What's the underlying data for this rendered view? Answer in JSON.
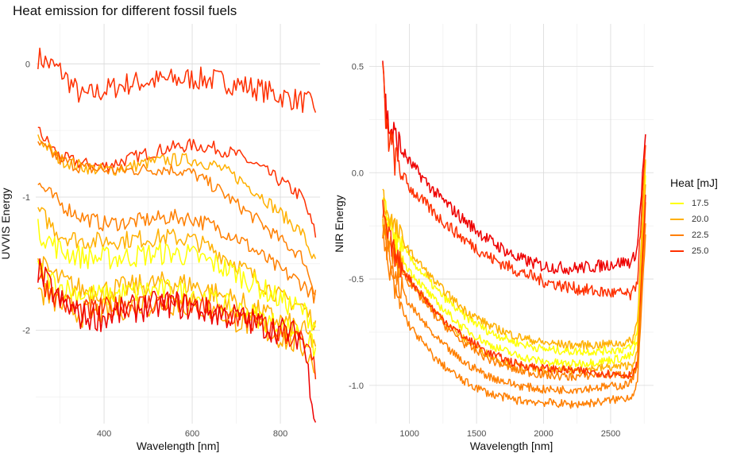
{
  "title": "Heat emission for different fossil fuels",
  "legend": {
    "title": "Heat [mJ]",
    "items": [
      {
        "label": "17.5",
        "color": "#FFFF00"
      },
      {
        "label": "20.0",
        "color": "#FFB000"
      },
      {
        "label": "22.5",
        "color": "#FF7F00"
      },
      {
        "label": "25.0",
        "color": "#FF3000"
      }
    ]
  },
  "chart_data": [
    {
      "type": "line",
      "xlabel": "Wavelength [nm]",
      "ylabel": "UVVIS Energy",
      "xlim": [
        245,
        890
      ],
      "ylim": [
        -2.7,
        0.3
      ],
      "xticks": [
        400,
        600,
        800
      ],
      "yticks": [
        0,
        -1,
        -2
      ],
      "grid": true,
      "series": [
        {
          "color": "#FF3000",
          "noise": 0.09,
          "x": [
            250,
            300,
            350,
            400,
            450,
            500,
            550,
            600,
            650,
            700,
            750,
            800,
            850,
            880
          ],
          "y": [
            0.05,
            -0.05,
            -0.25,
            -0.2,
            -0.15,
            -0.13,
            -0.12,
            -0.11,
            -0.12,
            -0.15,
            -0.19,
            -0.24,
            -0.28,
            -0.32
          ]
        },
        {
          "color": "#FF3000",
          "noise": 0.05,
          "x": [
            250,
            300,
            350,
            400,
            450,
            500,
            550,
            600,
            650,
            700,
            750,
            800,
            850,
            880
          ],
          "y": [
            -0.5,
            -0.7,
            -0.75,
            -0.77,
            -0.72,
            -0.67,
            -0.63,
            -0.61,
            -0.63,
            -0.68,
            -0.77,
            -0.88,
            -1.0,
            -1.28
          ]
        },
        {
          "color": "#FFB000",
          "noise": 0.05,
          "x": [
            250,
            300,
            350,
            400,
            450,
            500,
            550,
            600,
            650,
            700,
            750,
            800,
            850,
            880
          ],
          "y": [
            -0.55,
            -0.72,
            -0.77,
            -0.8,
            -0.78,
            -0.74,
            -0.72,
            -0.72,
            -0.76,
            -0.85,
            -0.97,
            -1.12,
            -1.27,
            -1.5
          ]
        },
        {
          "color": "#FF7F00",
          "noise": 0.05,
          "x": [
            250,
            300,
            350,
            400,
            450,
            500,
            550,
            600,
            650,
            700,
            750,
            800,
            850,
            880
          ],
          "y": [
            -0.6,
            -0.72,
            -0.78,
            -0.8,
            -0.8,
            -0.79,
            -0.79,
            -0.82,
            -0.92,
            -1.05,
            -1.18,
            -1.32,
            -1.45,
            -1.72
          ]
        },
        {
          "color": "#FF7F00",
          "noise": 0.06,
          "x": [
            250,
            300,
            350,
            400,
            450,
            500,
            550,
            600,
            650,
            700,
            750,
            800,
            850,
            880
          ],
          "y": [
            -0.9,
            -1.05,
            -1.15,
            -1.2,
            -1.19,
            -1.17,
            -1.15,
            -1.16,
            -1.22,
            -1.3,
            -1.42,
            -1.55,
            -1.65,
            -1.75
          ]
        },
        {
          "color": "#FFB000",
          "noise": 0.07,
          "x": [
            250,
            300,
            350,
            400,
            450,
            500,
            550,
            600,
            650,
            700,
            750,
            800,
            850,
            880
          ],
          "y": [
            -1.1,
            -1.28,
            -1.33,
            -1.33,
            -1.32,
            -1.31,
            -1.3,
            -1.32,
            -1.4,
            -1.5,
            -1.62,
            -1.75,
            -1.82,
            -1.95
          ]
        },
        {
          "color": "#FFFF00",
          "noise": 0.09,
          "x": [
            250,
            300,
            350,
            400,
            450,
            500,
            550,
            600,
            650,
            700,
            750,
            800,
            850,
            880
          ],
          "y": [
            -1.25,
            -1.4,
            -1.45,
            -1.46,
            -1.45,
            -1.43,
            -1.42,
            -1.44,
            -1.5,
            -1.57,
            -1.67,
            -1.77,
            -1.85,
            -1.95
          ]
        },
        {
          "color": "#FFB000",
          "noise": 0.09,
          "x": [
            250,
            300,
            350,
            400,
            450,
            500,
            550,
            600,
            650,
            700,
            750,
            800,
            850,
            880
          ],
          "y": [
            -1.5,
            -1.62,
            -1.7,
            -1.7,
            -1.68,
            -1.66,
            -1.64,
            -1.66,
            -1.72,
            -1.78,
            -1.86,
            -1.93,
            -2.0,
            -2.1
          ]
        },
        {
          "color": "#FFFF00",
          "noise": 0.09,
          "x": [
            250,
            300,
            350,
            400,
            450,
            500,
            550,
            600,
            650,
            700,
            750,
            800,
            850,
            880
          ],
          "y": [
            -1.55,
            -1.67,
            -1.73,
            -1.74,
            -1.72,
            -1.7,
            -1.7,
            -1.72,
            -1.78,
            -1.84,
            -1.9,
            -1.97,
            -2.03,
            -2.15
          ]
        },
        {
          "color": "#FFB000",
          "noise": 0.1,
          "x": [
            250,
            300,
            350,
            400,
            450,
            500,
            550,
            600,
            650,
            700,
            750,
            800,
            850,
            880
          ],
          "y": [
            -1.7,
            -1.8,
            -1.88,
            -1.86,
            -1.82,
            -1.8,
            -1.79,
            -1.81,
            -1.86,
            -1.92,
            -1.98,
            -2.05,
            -2.12,
            -2.28
          ]
        },
        {
          "color": "#FF3000",
          "noise": 0.09,
          "x": [
            250,
            300,
            350,
            400,
            450,
            500,
            550,
            600,
            650,
            700,
            750,
            800,
            850,
            880
          ],
          "y": [
            -1.6,
            -1.78,
            -1.86,
            -1.84,
            -1.82,
            -1.8,
            -1.79,
            -1.82,
            -1.86,
            -1.9,
            -1.96,
            -2.02,
            -2.08,
            -2.3
          ]
        },
        {
          "color": "#EE0000",
          "noise": 0.11,
          "x": [
            250,
            300,
            350,
            400,
            450,
            500,
            550,
            600,
            650,
            700,
            750,
            800,
            850,
            880
          ],
          "y": [
            -1.55,
            -1.78,
            -1.9,
            -1.9,
            -1.85,
            -1.82,
            -1.8,
            -1.83,
            -1.87,
            -1.9,
            -1.95,
            -2.0,
            -2.05,
            -2.65
          ]
        }
      ]
    },
    {
      "type": "line",
      "xlabel": "Wavelength [nm]",
      "ylabel": "NIR Energy",
      "xlim": [
        700,
        2820
      ],
      "ylim": [
        -1.18,
        0.7
      ],
      "xticks": [
        1000,
        1500,
        2000,
        2500
      ],
      "yticks": [
        0.5,
        0.0,
        -0.5,
        -1.0
      ],
      "grid": true,
      "series": [
        {
          "color": "#EE0000",
          "noise": 0.03,
          "x": [
            800,
            830,
            900,
            1000,
            1200,
            1400,
            1600,
            1800,
            2000,
            2200,
            2400,
            2600,
            2660,
            2700,
            2760
          ],
          "y": [
            0.55,
            0.25,
            0.15,
            0.05,
            -0.1,
            -0.22,
            -0.32,
            -0.4,
            -0.44,
            -0.45,
            -0.44,
            -0.42,
            -0.42,
            -0.35,
            0.18
          ]
        },
        {
          "color": "#FF3000",
          "noise": 0.03,
          "x": [
            800,
            830,
            900,
            1000,
            1200,
            1400,
            1600,
            1800,
            2000,
            2200,
            2400,
            2600,
            2660,
            2700,
            2760
          ],
          "y": [
            0.45,
            0.2,
            0.05,
            -0.07,
            -0.2,
            -0.31,
            -0.4,
            -0.46,
            -0.51,
            -0.54,
            -0.56,
            -0.57,
            -0.58,
            -0.5,
            0.12
          ]
        },
        {
          "color": "#FFFF00",
          "noise": 0.02,
          "x": [
            800,
            830,
            900,
            1000,
            1200,
            1400,
            1600,
            1800,
            2000,
            2200,
            2400,
            2600,
            2660,
            2700,
            2760
          ],
          "y": [
            -0.15,
            -0.2,
            -0.3,
            -0.4,
            -0.55,
            -0.67,
            -0.75,
            -0.8,
            -0.83,
            -0.84,
            -0.84,
            -0.83,
            -0.82,
            -0.75,
            0.05
          ]
        },
        {
          "color": "#FFB000",
          "noise": 0.02,
          "x": [
            800,
            830,
            900,
            1000,
            1200,
            1400,
            1600,
            1800,
            2000,
            2200,
            2400,
            2600,
            2660,
            2700,
            2760
          ],
          "y": [
            -0.1,
            -0.18,
            -0.27,
            -0.37,
            -0.52,
            -0.64,
            -0.72,
            -0.77,
            -0.8,
            -0.81,
            -0.81,
            -0.8,
            -0.79,
            -0.7,
            0.08
          ]
        },
        {
          "color": "#FFFF00",
          "noise": 0.02,
          "x": [
            800,
            830,
            900,
            1000,
            1200,
            1400,
            1600,
            1800,
            2000,
            2200,
            2400,
            2600,
            2660,
            2700,
            2760
          ],
          "y": [
            -0.2,
            -0.26,
            -0.36,
            -0.46,
            -0.61,
            -0.73,
            -0.81,
            -0.86,
            -0.89,
            -0.9,
            -0.89,
            -0.87,
            -0.86,
            -0.8,
            -0.02
          ]
        },
        {
          "color": "#FFB000",
          "noise": 0.02,
          "x": [
            800,
            830,
            900,
            1000,
            1200,
            1400,
            1600,
            1800,
            2000,
            2200,
            2400,
            2600,
            2660,
            2700,
            2760
          ],
          "y": [
            -0.22,
            -0.3,
            -0.4,
            -0.5,
            -0.66,
            -0.78,
            -0.86,
            -0.91,
            -0.93,
            -0.93,
            -0.92,
            -0.91,
            -0.9,
            -0.85,
            -0.05
          ]
        },
        {
          "color": "#FF7F00",
          "noise": 0.02,
          "x": [
            800,
            830,
            900,
            1000,
            1200,
            1400,
            1600,
            1800,
            2000,
            2200,
            2400,
            2600,
            2660,
            2700,
            2760
          ],
          "y": [
            -0.2,
            -0.3,
            -0.42,
            -0.52,
            -0.68,
            -0.8,
            -0.88,
            -0.93,
            -0.95,
            -0.96,
            -0.95,
            -0.95,
            -0.94,
            -0.9,
            -0.15
          ]
        },
        {
          "color": "#FF3000",
          "noise": 0.02,
          "x": [
            800,
            830,
            900,
            1000,
            1200,
            1400,
            1600,
            1800,
            2000,
            2200,
            2400,
            2600,
            2660,
            2700,
            2760
          ],
          "y": [
            -0.18,
            -0.28,
            -0.4,
            -0.5,
            -0.66,
            -0.77,
            -0.85,
            -0.9,
            -0.92,
            -0.93,
            -0.94,
            -0.95,
            -0.95,
            -0.9,
            -0.12
          ]
        },
        {
          "color": "#FF7F00",
          "noise": 0.02,
          "x": [
            800,
            830,
            900,
            1000,
            1200,
            1400,
            1600,
            1800,
            2000,
            2200,
            2400,
            2600,
            2660,
            2700,
            2760
          ],
          "y": [
            -0.25,
            -0.35,
            -0.5,
            -0.62,
            -0.78,
            -0.89,
            -0.96,
            -1.0,
            -1.02,
            -1.02,
            -1.01,
            -1.0,
            -0.98,
            -0.9,
            -0.25
          ]
        },
        {
          "color": "#FF7F00",
          "noise": 0.02,
          "x": [
            800,
            830,
            900,
            1000,
            1200,
            1400,
            1600,
            1800,
            2000,
            2200,
            2400,
            2600,
            2660,
            2700,
            2760
          ],
          "y": [
            -0.3,
            -0.42,
            -0.58,
            -0.72,
            -0.88,
            -0.98,
            -1.04,
            -1.07,
            -1.08,
            -1.09,
            -1.08,
            -1.06,
            -1.05,
            -0.98,
            -0.3
          ]
        }
      ]
    }
  ]
}
